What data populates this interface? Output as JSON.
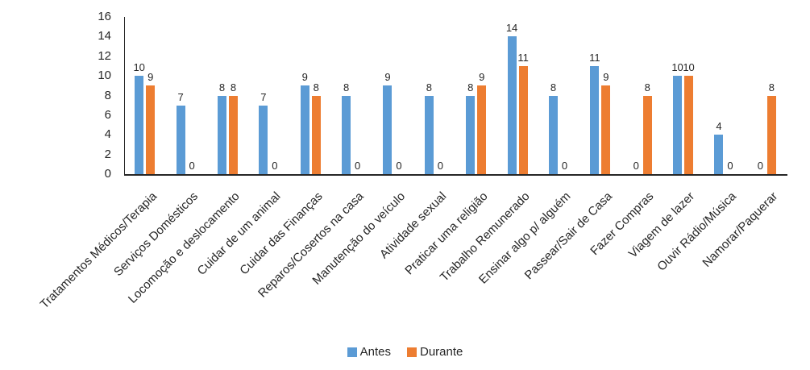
{
  "chart_data": {
    "type": "bar",
    "title": "",
    "categories": [
      "Tratamentos Médicos/Terapia",
      "Serviços Domésticos",
      "Locomoção e deslocamento",
      "Cuidar de um animal",
      "Cuidar das Finanças",
      "Reparos/Cosertos na casa",
      "Manutenção do veículo",
      "Atividade sexual",
      "Praticar uma religião",
      "Trabalho Remunerado",
      "Ensinar algo p/ alguém",
      "Passear/Sair de Casa",
      "Fazer Compras",
      "Viagem de lazer",
      "Ouvir Rádio/Música",
      "Namorar/Paquerar"
    ],
    "series": [
      {
        "name": "Antes",
        "color": "#5B9BD5",
        "values": [
          10,
          7,
          8,
          7,
          9,
          8,
          9,
          8,
          8,
          14,
          8,
          11,
          0,
          10,
          4,
          0
        ]
      },
      {
        "name": "Durante",
        "color": "#ED7D31",
        "values": [
          9,
          0,
          8,
          0,
          8,
          0,
          0,
          0,
          9,
          11,
          0,
          9,
          8,
          10,
          0,
          8
        ]
      }
    ],
    "xlabel": "",
    "ylabel": "",
    "ylim": [
      0,
      16
    ],
    "yticks": [
      0,
      2,
      4,
      6,
      8,
      10,
      12,
      14,
      16
    ],
    "grid": false,
    "legend_position": "bottom",
    "data_labels": true,
    "axis_color": "#262626",
    "text_color": "#262626",
    "background_color": "#ffffff"
  }
}
